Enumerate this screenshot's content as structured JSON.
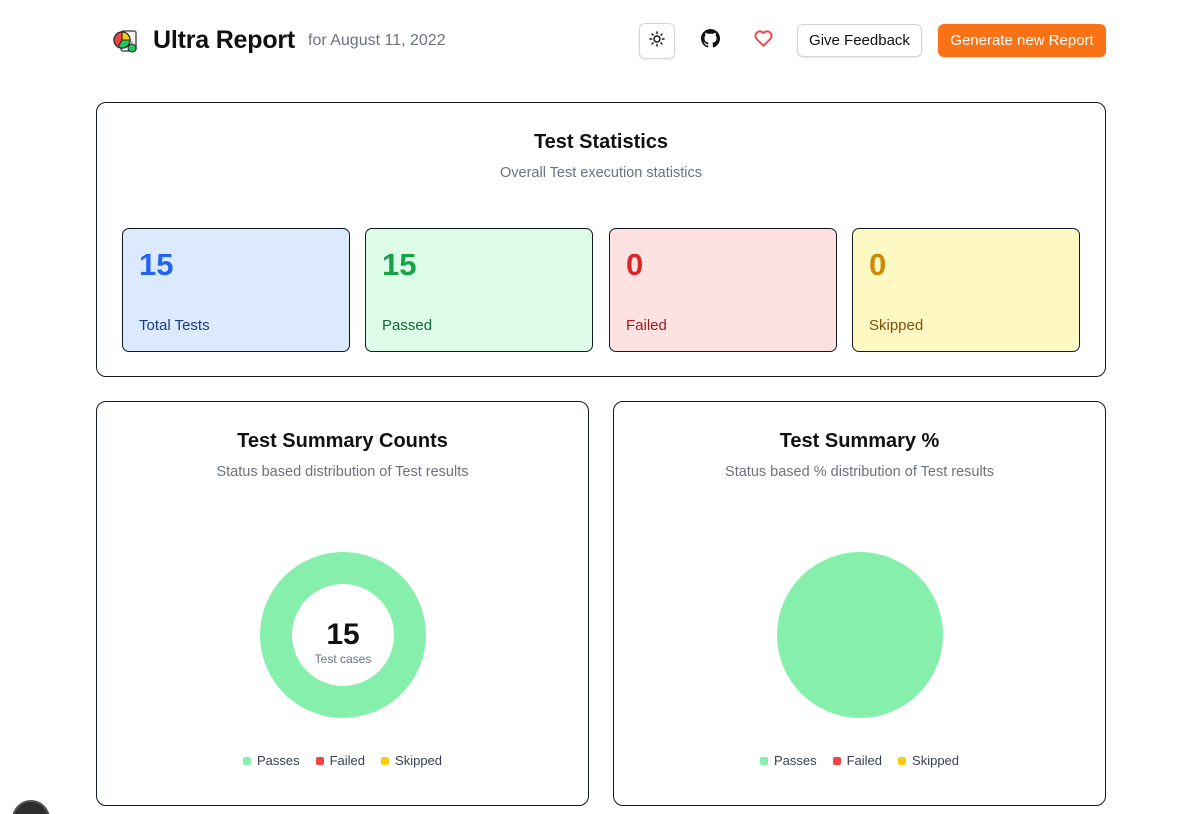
{
  "header": {
    "title": "Ultra Report",
    "date": "for August 11, 2022",
    "feedback_label": "Give Feedback",
    "generate_label": "Generate new Report",
    "icons": {
      "logo": "report-logo-icon",
      "theme": "sun-icon",
      "github": "github-icon",
      "heart": "heart-icon"
    }
  },
  "stats": {
    "title": "Test Statistics",
    "subtitle": "Overall Test execution statistics",
    "items": [
      {
        "value": "15",
        "label": "Total Tests"
      },
      {
        "value": "15",
        "label": "Passed"
      },
      {
        "value": "0",
        "label": "Failed"
      },
      {
        "value": "0",
        "label": "Skipped"
      }
    ]
  },
  "counts": {
    "title": "Test Summary Counts",
    "subtitle": "Status based distribution of Test results",
    "center_value": "15",
    "center_label": "Test cases"
  },
  "percent": {
    "title": "Test Summary %",
    "subtitle": "Status based % distribution of Test results"
  },
  "legend": [
    {
      "label": "Passes",
      "color": "#86efac"
    },
    {
      "label": "Failed",
      "color": "#ef4444"
    },
    {
      "label": "Skipped",
      "color": "#facc15"
    }
  ],
  "chart_data": [
    {
      "type": "pie",
      "variant": "doughnut",
      "categories": [
        "Passes",
        "Failed",
        "Skipped"
      ],
      "values": [
        15,
        0,
        0
      ],
      "colors": [
        "#86efac",
        "#ef4444",
        "#facc15"
      ],
      "title": "Test Summary Counts",
      "legend": "bottom"
    },
    {
      "type": "pie",
      "categories": [
        "Passes",
        "Failed",
        "Skipped"
      ],
      "values": [
        100,
        0,
        0
      ],
      "colors": [
        "#86efac",
        "#ef4444",
        "#facc15"
      ],
      "title": "Test Summary %",
      "legend": "bottom"
    }
  ]
}
